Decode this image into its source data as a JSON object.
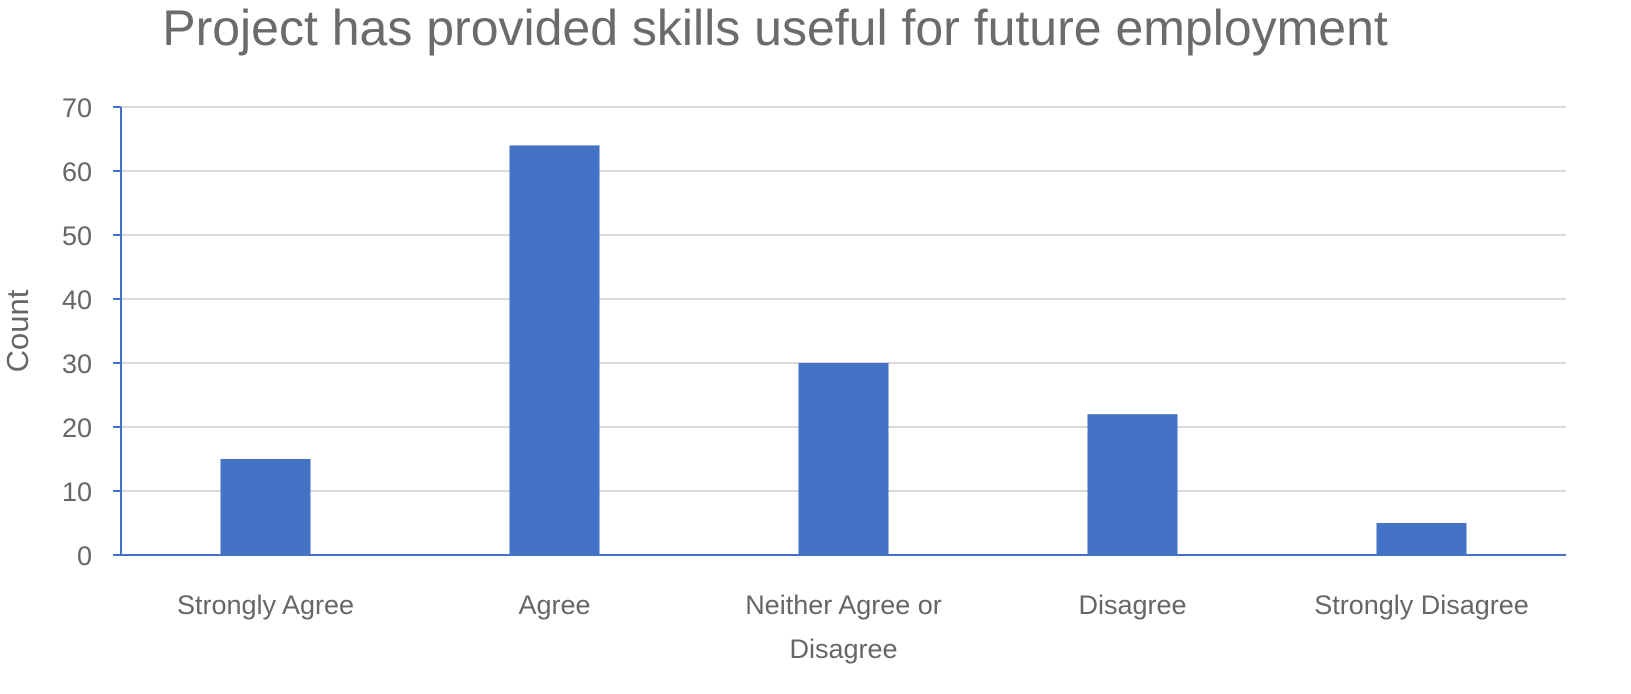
{
  "chart_data": {
    "type": "bar",
    "title": "Project has provided skills useful for future employment",
    "xlabel": "",
    "ylabel": "Count",
    "categories": [
      [
        "Strongly Agree"
      ],
      [
        "Agree"
      ],
      [
        "Neither Agree or",
        "Disagree"
      ],
      [
        "Disagree"
      ],
      [
        "Strongly Disagree"
      ]
    ],
    "values": [
      15,
      64,
      30,
      22,
      5
    ],
    "ylim": [
      0,
      70
    ],
    "yticks": [
      "0",
      "10",
      "20",
      "30",
      "40",
      "50",
      "60",
      "70"
    ],
    "grid": true,
    "legend": "none",
    "colors": {
      "bar": "#4472c4",
      "axis": "#4472c4",
      "grid": "#d9d9d9",
      "text": "#666666"
    }
  }
}
